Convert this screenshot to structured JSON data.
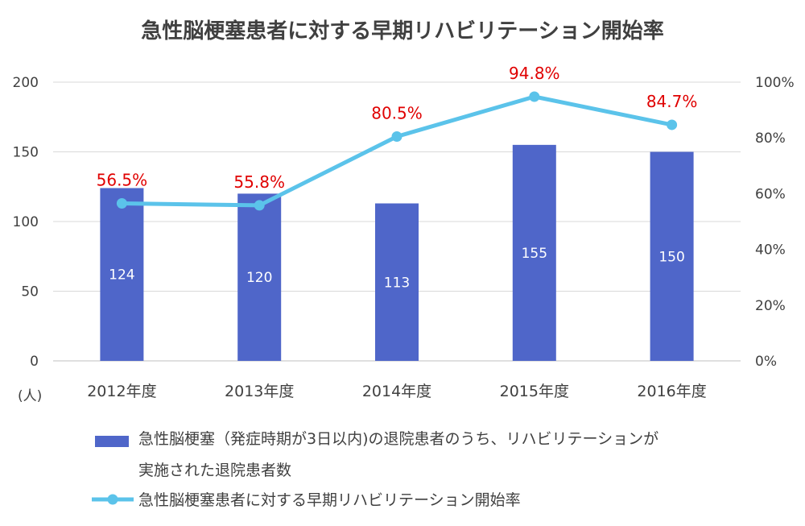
{
  "chart_data": {
    "type": "bar+line",
    "title": "急性脳梗塞患者に対する早期リハビリテーション開始率",
    "categories": [
      "2012年度",
      "2013年度",
      "2014年度",
      "2015年度",
      "2016年度"
    ],
    "series": [
      {
        "name": "急性脳梗塞（発症時期が3日以内)の退院患者のうち、リハビリテーションが実施された退院患者数",
        "type": "bar",
        "axis": "left",
        "values": [
          124,
          120,
          113,
          155,
          150
        ],
        "data_labels": [
          "124",
          "120",
          "113",
          "155",
          "150"
        ],
        "color": "#4F66C9"
      },
      {
        "name": "急性脳梗塞患者に対する早期リハビリテーション開始率",
        "type": "line",
        "axis": "right",
        "values": [
          56.5,
          55.8,
          80.5,
          94.8,
          84.7
        ],
        "data_labels": [
          "56.5%",
          "55.8%",
          "80.5%",
          "94.8%",
          "84.7%"
        ],
        "color": "#5BC3EA",
        "label_color": "#E00000"
      }
    ],
    "left_axis": {
      "ylim": [
        0,
        200
      ],
      "ticks": [
        "0",
        "50",
        "100",
        "150",
        "200"
      ],
      "unit": "(人)"
    },
    "right_axis": {
      "ylim": [
        0,
        100
      ],
      "ticks": [
        "0%",
        "20%",
        "40%",
        "60%",
        "80%",
        "100%"
      ]
    },
    "grid": true,
    "legend_position": "bottom-left"
  },
  "legend": {
    "bar_line1": "急性脳梗塞（発症時期が3日以内)の退院患者のうち、リハビリテーションが",
    "bar_line2": "実施された退院患者数",
    "line_label": "急性脳梗塞患者に対する早期リハビリテーション開始率"
  }
}
